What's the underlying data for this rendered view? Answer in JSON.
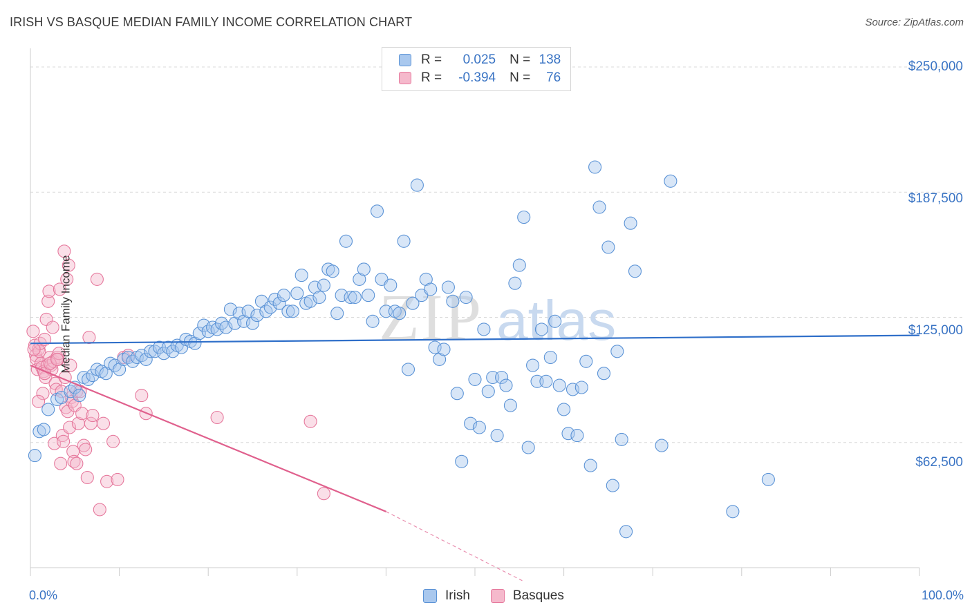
{
  "header": {
    "title": "IRISH VS BASQUE MEDIAN FAMILY INCOME CORRELATION CHART",
    "source": "Source: ZipAtlas.com"
  },
  "watermark": {
    "part1": "ZIP",
    "part2": "atlas"
  },
  "legend": {
    "rows": [
      {
        "r_label": "R =",
        "r_value": "0.025",
        "n_label": "N =",
        "n_value": "138"
      },
      {
        "r_label": "R =",
        "r_value": "-0.394",
        "n_label": "N =",
        "n_value": "76"
      }
    ]
  },
  "bottom_legend": {
    "irish": "Irish",
    "basques": "Basques"
  },
  "colors": {
    "irish_fill": "#a9c8ee",
    "irish_stroke": "#5b93d6",
    "irish_line": "#2f6fc9",
    "basque_fill": "#f5b9cc",
    "basque_stroke": "#e6799d",
    "basque_line": "#e0608d",
    "grid": "#d9d9d9",
    "tick_text": "#3a74c4"
  },
  "chart_data": {
    "type": "scatter",
    "title": "IRISH VS BASQUE MEDIAN FAMILY INCOME CORRELATION CHART",
    "xlabel": "",
    "ylabel": "Median Family Income",
    "xlim": [
      0,
      100
    ],
    "ylim": [
      0,
      250000
    ],
    "x_ticks": [
      "0.0%",
      "100.0%"
    ],
    "y_ticks": [
      "$250,000",
      "$187,500",
      "$125,000",
      "$62,500"
    ],
    "y_tick_values": [
      250000,
      187500,
      125000,
      62500
    ],
    "grid": true,
    "legend_position": "top-center",
    "series": [
      {
        "name": "Irish",
        "r": 0.025,
        "n": 138,
        "trend": {
          "x": [
            0,
            100
          ],
          "y": [
            112000,
            116000
          ]
        },
        "points": [
          [
            0.5,
            56000
          ],
          [
            1.0,
            68000
          ],
          [
            1.5,
            69000
          ],
          [
            2.0,
            79000
          ],
          [
            3.0,
            84000
          ],
          [
            3.5,
            85000
          ],
          [
            4.5,
            88000
          ],
          [
            5.0,
            90000
          ],
          [
            5.5,
            86000
          ],
          [
            6.0,
            95000
          ],
          [
            6.5,
            94000
          ],
          [
            7.0,
            96000
          ],
          [
            7.5,
            99000
          ],
          [
            8.0,
            98000
          ],
          [
            8.5,
            97000
          ],
          [
            9.0,
            102000
          ],
          [
            9.5,
            101000
          ],
          [
            10.0,
            99000
          ],
          [
            10.5,
            104000
          ],
          [
            11.0,
            105000
          ],
          [
            11.5,
            103000
          ],
          [
            12.0,
            105000
          ],
          [
            12.5,
            106000
          ],
          [
            13.0,
            104000
          ],
          [
            13.5,
            108000
          ],
          [
            14.0,
            108000
          ],
          [
            14.5,
            110000
          ],
          [
            15.0,
            107000
          ],
          [
            15.5,
            110000
          ],
          [
            16.0,
            108000
          ],
          [
            16.5,
            111000
          ],
          [
            17.0,
            110000
          ],
          [
            17.5,
            114000
          ],
          [
            18.0,
            113000
          ],
          [
            18.5,
            112000
          ],
          [
            19.0,
            117000
          ],
          [
            19.5,
            121000
          ],
          [
            20.0,
            118000
          ],
          [
            20.5,
            120000
          ],
          [
            21.0,
            119000
          ],
          [
            21.5,
            122000
          ],
          [
            22.0,
            120000
          ],
          [
            22.5,
            129000
          ],
          [
            23.0,
            122000
          ],
          [
            23.5,
            127000
          ],
          [
            24.0,
            123000
          ],
          [
            24.5,
            128000
          ],
          [
            25.0,
            122000
          ],
          [
            25.5,
            126000
          ],
          [
            26.0,
            133000
          ],
          [
            26.5,
            128000
          ],
          [
            27.0,
            130000
          ],
          [
            27.5,
            134000
          ],
          [
            28.0,
            132000
          ],
          [
            28.5,
            136000
          ],
          [
            29.0,
            128000
          ],
          [
            29.5,
            128000
          ],
          [
            30.0,
            137000
          ],
          [
            30.5,
            146000
          ],
          [
            31.0,
            132000
          ],
          [
            31.5,
            133000
          ],
          [
            32.0,
            140000
          ],
          [
            32.5,
            135000
          ],
          [
            33.0,
            141000
          ],
          [
            33.5,
            149000
          ],
          [
            34.0,
            148000
          ],
          [
            34.5,
            127000
          ],
          [
            35.0,
            136000
          ],
          [
            35.5,
            163000
          ],
          [
            36.0,
            135000
          ],
          [
            36.5,
            135000
          ],
          [
            37.0,
            144000
          ],
          [
            37.5,
            149000
          ],
          [
            38.0,
            136000
          ],
          [
            38.5,
            123000
          ],
          [
            39.0,
            178000
          ],
          [
            39.5,
            144000
          ],
          [
            40.0,
            128000
          ],
          [
            40.5,
            141000
          ],
          [
            41.0,
            128000
          ],
          [
            41.5,
            127000
          ],
          [
            42.0,
            163000
          ],
          [
            42.5,
            99000
          ],
          [
            43.0,
            132000
          ],
          [
            43.5,
            191000
          ],
          [
            44.0,
            136000
          ],
          [
            44.5,
            144000
          ],
          [
            45.0,
            139000
          ],
          [
            45.5,
            110000
          ],
          [
            46.0,
            104000
          ],
          [
            46.5,
            109000
          ],
          [
            47.0,
            140000
          ],
          [
            47.5,
            133000
          ],
          [
            48.0,
            87000
          ],
          [
            48.5,
            53000
          ],
          [
            49.0,
            135000
          ],
          [
            49.5,
            72000
          ],
          [
            50.0,
            94000
          ],
          [
            50.5,
            70000
          ],
          [
            51.0,
            119000
          ],
          [
            51.5,
            88000
          ],
          [
            52.0,
            95000
          ],
          [
            52.5,
            66000
          ],
          [
            53.0,
            95000
          ],
          [
            53.5,
            91000
          ],
          [
            54.0,
            81000
          ],
          [
            54.5,
            142000
          ],
          [
            55.0,
            151000
          ],
          [
            55.5,
            175000
          ],
          [
            56.0,
            60000
          ],
          [
            56.5,
            101000
          ],
          [
            57.0,
            93000
          ],
          [
            57.5,
            119000
          ],
          [
            58.0,
            93000
          ],
          [
            58.5,
            105000
          ],
          [
            59.0,
            123000
          ],
          [
            59.5,
            91000
          ],
          [
            60.0,
            79000
          ],
          [
            60.5,
            67000
          ],
          [
            61.0,
            89000
          ],
          [
            61.5,
            66000
          ],
          [
            62.0,
            90000
          ],
          [
            62.5,
            103000
          ],
          [
            63.0,
            51000
          ],
          [
            63.5,
            200000
          ],
          [
            64.0,
            180000
          ],
          [
            64.5,
            97000
          ],
          [
            65.0,
            160000
          ],
          [
            65.5,
            41000
          ],
          [
            66.0,
            108000
          ],
          [
            66.5,
            64000
          ],
          [
            67.0,
            18000
          ],
          [
            67.5,
            172000
          ],
          [
            68.0,
            148000
          ],
          [
            71.0,
            61000
          ],
          [
            72.0,
            193000
          ],
          [
            79.0,
            28000
          ],
          [
            83.0,
            44000
          ]
        ]
      },
      {
        "name": "Basques",
        "r": -0.394,
        "n": 76,
        "trend": {
          "x": [
            0,
            40
          ],
          "y": [
            101000,
            28000
          ],
          "dashed_to": {
            "x": 55.5,
            "y": 0
          }
        },
        "points": [
          [
            0.3,
            118000
          ],
          [
            0.5,
            111000
          ],
          [
            0.6,
            106000
          ],
          [
            0.7,
            104000
          ],
          [
            0.8,
            99000
          ],
          [
            0.9,
            109000
          ],
          [
            1.0,
            108000
          ],
          [
            1.1,
            112000
          ],
          [
            1.2,
            102000
          ],
          [
            1.3,
            100000
          ],
          [
            1.4,
            87000
          ],
          [
            1.5,
            98000
          ],
          [
            1.6,
            114000
          ],
          [
            1.7,
            95000
          ],
          [
            1.8,
            124000
          ],
          [
            1.9,
            101000
          ],
          [
            2.0,
            133000
          ],
          [
            2.1,
            138000
          ],
          [
            2.2,
            105000
          ],
          [
            2.3,
            101000
          ],
          [
            2.4,
            99000
          ],
          [
            2.5,
            120000
          ],
          [
            2.6,
            103000
          ],
          [
            2.7,
            62000
          ],
          [
            2.8,
            92000
          ],
          [
            2.9,
            89000
          ],
          [
            3.0,
            105000
          ],
          [
            3.1,
            104000
          ],
          [
            3.2,
            107000
          ],
          [
            3.3,
            139000
          ],
          [
            3.4,
            52000
          ],
          [
            3.5,
            88000
          ],
          [
            3.6,
            66000
          ],
          [
            3.7,
            63000
          ],
          [
            3.8,
            158000
          ],
          [
            3.9,
            95000
          ],
          [
            4.0,
            80000
          ],
          [
            4.1,
            144000
          ],
          [
            4.2,
            78000
          ],
          [
            4.3,
            151000
          ],
          [
            4.4,
            70000
          ],
          [
            4.5,
            101000
          ],
          [
            4.6,
            85000
          ],
          [
            4.7,
            83000
          ],
          [
            4.8,
            58000
          ],
          [
            4.9,
            53000
          ],
          [
            5.0,
            81000
          ],
          [
            5.2,
            88000
          ],
          [
            5.4,
            72000
          ],
          [
            5.6,
            88000
          ],
          [
            5.8,
            77000
          ],
          [
            6.0,
            61000
          ],
          [
            6.2,
            59000
          ],
          [
            6.4,
            45000
          ],
          [
            6.6,
            115000
          ],
          [
            6.8,
            72000
          ],
          [
            7.0,
            76000
          ],
          [
            7.5,
            144000
          ],
          [
            7.8,
            29000
          ],
          [
            8.2,
            72000
          ],
          [
            8.6,
            43000
          ],
          [
            9.3,
            63000
          ],
          [
            9.8,
            44000
          ],
          [
            10.5,
            105000
          ],
          [
            11.0,
            106000
          ],
          [
            12.5,
            86000
          ],
          [
            13.0,
            77000
          ],
          [
            21.0,
            75000
          ],
          [
            31.5,
            73000
          ],
          [
            33.0,
            37000
          ],
          [
            0.4,
            109000
          ],
          [
            0.9,
            83000
          ],
          [
            1.6,
            97000
          ],
          [
            2.2,
            102000
          ],
          [
            3.0,
            104000
          ],
          [
            5.2,
            52000
          ]
        ]
      }
    ]
  }
}
